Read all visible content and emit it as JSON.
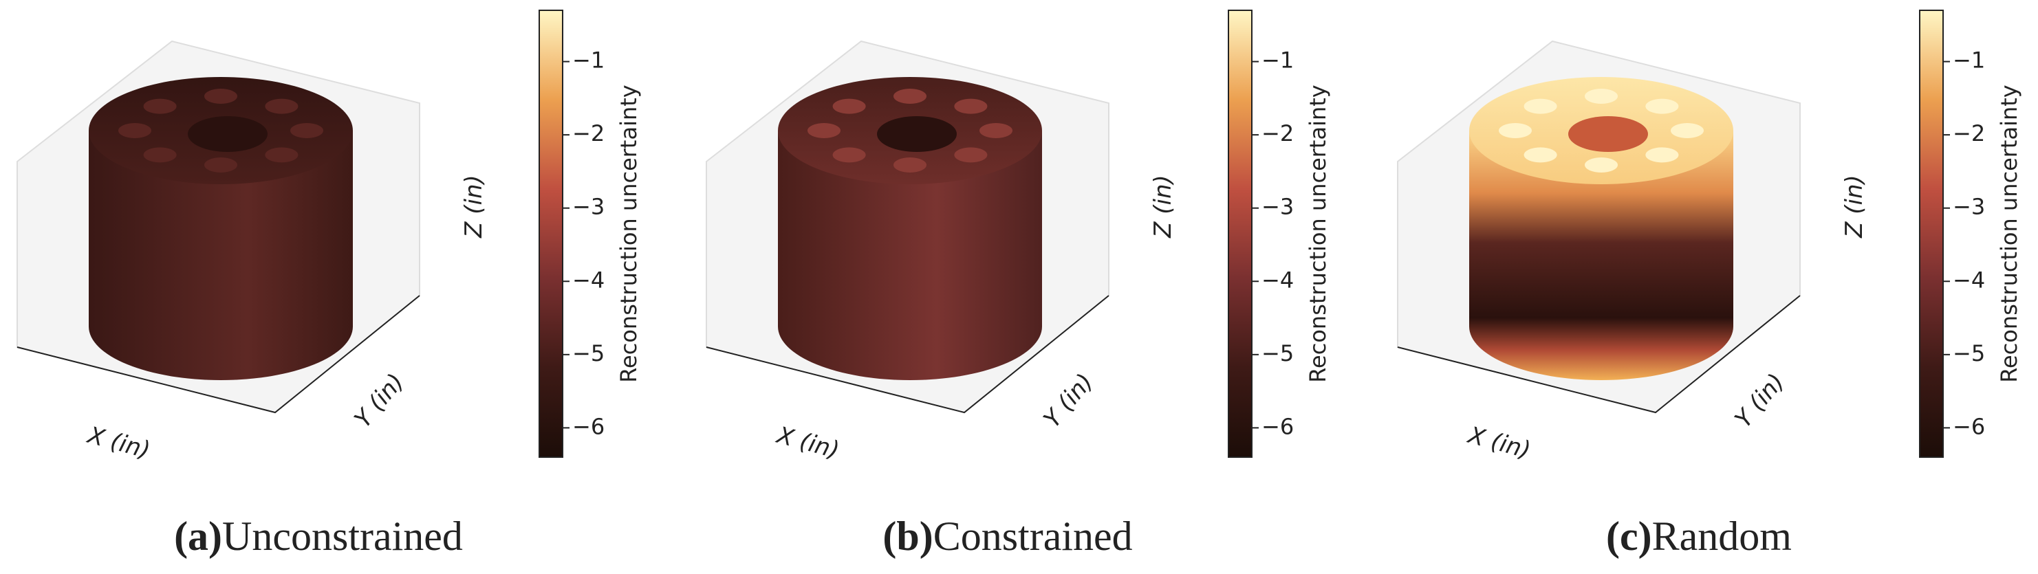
{
  "chart_data": [
    {
      "type": "surface3d",
      "xlabel": "X (in)",
      "ylabel": "Y (in)",
      "zlabel": "Z (in)",
      "colorbar": {
        "label": "Reconstruction uncertainty",
        "lim": [
          -6.4,
          -0.3
        ],
        "ticks": [
          {
            "value": -1,
            "label": "−1"
          },
          {
            "value": -2,
            "label": "−2"
          },
          {
            "value": -3,
            "label": "−3"
          },
          {
            "value": -4,
            "label": "−4"
          },
          {
            "value": -5,
            "label": "−5"
          },
          {
            "value": -6,
            "label": "−6"
          }
        ]
      },
      "caption_label": "(a)",
      "caption": "Unconstrained"
    },
    {
      "type": "surface3d",
      "xlabel": "X (in)",
      "ylabel": "Y (in)",
      "zlabel": "Z (in)",
      "colorbar": {
        "label": "Reconstruction uncertainty",
        "lim": [
          -6.4,
          -0.3
        ],
        "ticks": [
          {
            "value": -1,
            "label": "−1"
          },
          {
            "value": -2,
            "label": "−2"
          },
          {
            "value": -3,
            "label": "−3"
          },
          {
            "value": -4,
            "label": "−4"
          },
          {
            "value": -5,
            "label": "−5"
          },
          {
            "value": -6,
            "label": "−6"
          }
        ]
      },
      "caption_label": "(b)",
      "caption": "Constrained"
    },
    {
      "type": "surface3d",
      "xlabel": "X (in)",
      "ylabel": "Y (in)",
      "zlabel": "Z (in)",
      "colorbar": {
        "label": "Reconstruction uncertainty",
        "lim": [
          -6.4,
          -0.3
        ],
        "ticks": [
          {
            "value": -1,
            "label": "−1"
          },
          {
            "value": -2,
            "label": "−2"
          },
          {
            "value": -3,
            "label": "−3"
          },
          {
            "value": -4,
            "label": "−4"
          },
          {
            "value": -5,
            "label": "−5"
          },
          {
            "value": -6,
            "label": "−6"
          }
        ]
      },
      "caption_label": "(c)",
      "caption": "Random"
    }
  ]
}
